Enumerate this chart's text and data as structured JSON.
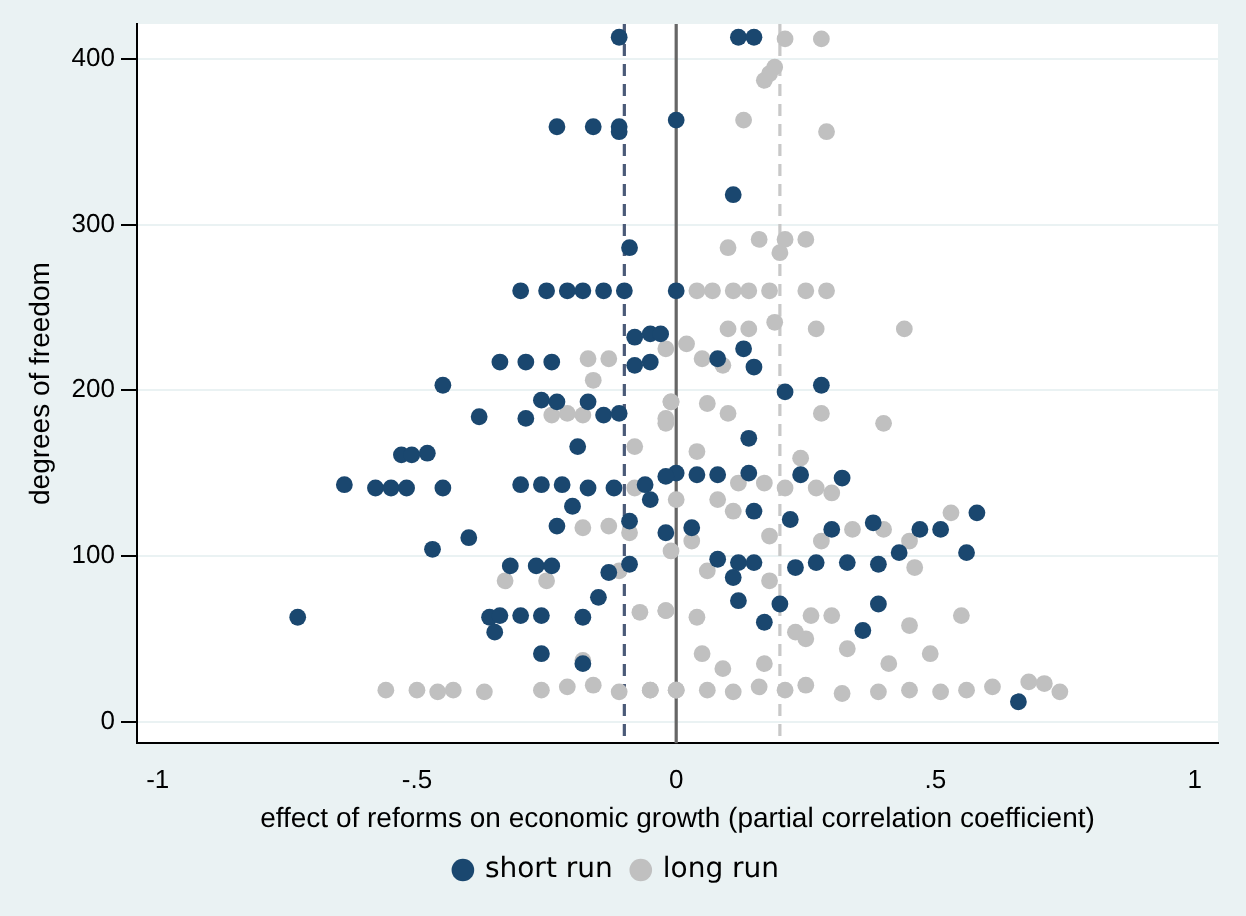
{
  "chart_data": {
    "type": "scatter",
    "xlabel": "effect of reforms on economic growth (partial correlation coefficient)",
    "ylabel": "degrees of freedom",
    "xlim": [
      -1.04,
      1.045
    ],
    "ylim": [
      -13,
      421
    ],
    "xticks": [
      -1,
      {
        "value": -0.5,
        "label": "-.5"
      },
      0,
      {
        "value": 0.5,
        "label": ".5"
      },
      1
    ],
    "yticks": [
      0,
      100,
      200,
      300,
      400
    ],
    "grid": "y",
    "legend": "bottom",
    "marker": "circle",
    "ref_lines": [
      {
        "axis": "x",
        "value": -0.1,
        "color": "#4a5a78",
        "line_style": "dashed"
      },
      {
        "axis": "x",
        "value": 0,
        "color": "#666666",
        "line_style": "solid"
      },
      {
        "axis": "x",
        "value": 0.2,
        "color": "#c8c8c8",
        "line_style": "dashed"
      }
    ],
    "series": [
      {
        "name": "short run",
        "color": "#1a476f",
        "x": [
          -0.11,
          -0.23,
          -0.16,
          -0.11,
          -0.11,
          0,
          -0.09,
          -0.3,
          -0.25,
          -0.21,
          -0.18,
          -0.14,
          -0.1,
          0,
          0.11,
          0.12,
          0.15,
          -0.08,
          -0.05,
          -0.03,
          -0.08,
          -0.05,
          -0.34,
          -0.29,
          -0.24,
          -0.26,
          -0.23,
          -0.17,
          -0.45,
          -0.38,
          -0.29,
          -0.14,
          -0.11,
          -0.19,
          -0.53,
          -0.51,
          -0.48,
          -0.64,
          -0.58,
          -0.55,
          -0.52,
          -0.45,
          -0.3,
          -0.26,
          -0.22,
          -0.17,
          -0.12,
          -0.06,
          -0.2,
          -0.05,
          -0.23,
          -0.09,
          -0.4,
          -0.47,
          -0.32,
          -0.27,
          -0.24,
          -0.13,
          -0.09,
          -0.15,
          -0.73,
          -0.36,
          -0.34,
          -0.3,
          -0.26,
          -0.35,
          -0.18,
          -0.26,
          -0.18,
          0,
          -0.02,
          0.08,
          0.13,
          0.15,
          0.21,
          0.28,
          0.14,
          0.04,
          0.08,
          0.14,
          0.24,
          0.32,
          0.15,
          0.22,
          0.3,
          0.38,
          0.43,
          0.47,
          0.51,
          0.58,
          0.56,
          -0.02,
          0.03,
          0.08,
          0.12,
          0.15,
          0.11,
          0.23,
          0.27,
          0.33,
          0.39,
          0.12,
          0.2,
          0.17,
          0.39,
          0.36,
          0.66
        ],
        "values": [
          413,
          359,
          359,
          359,
          356,
          363,
          286,
          260,
          260,
          260,
          260,
          260,
          260,
          260,
          318,
          413,
          413,
          232,
          234,
          234,
          215,
          217,
          217,
          217,
          217,
          194,
          193,
          193,
          203,
          184,
          183,
          185,
          186,
          166,
          161,
          161,
          162,
          143,
          141,
          141,
          141,
          141,
          143,
          143,
          143,
          141,
          141,
          143,
          130,
          134,
          118,
          121,
          111,
          104,
          94,
          94,
          94,
          90,
          95,
          75,
          63,
          63,
          64,
          64,
          64,
          54,
          63,
          41,
          35,
          150,
          148,
          219,
          225,
          214,
          199,
          203,
          171,
          149,
          149,
          150,
          149,
          147,
          127,
          122,
          116,
          120,
          102,
          116,
          116,
          126,
          102,
          114,
          117,
          98,
          96,
          96,
          87,
          93,
          96,
          96,
          95,
          73,
          71,
          60,
          71,
          55,
          12
        ]
      },
      {
        "name": "long run",
        "color": "#c0c0c0",
        "x": [
          0.21,
          0.28,
          0.18,
          0.19,
          0.17,
          0.13,
          0.29,
          0.1,
          0.16,
          0.21,
          0.25,
          0.2,
          0.04,
          0.07,
          0.11,
          0.14,
          0.18,
          0.25,
          0.29,
          0.1,
          0.14,
          0.19,
          0.27,
          0.44,
          -0.02,
          0.02,
          0.05,
          0.09,
          0.28,
          0.4,
          -0.01,
          0.06,
          0.1,
          -0.02,
          0.04,
          0.24,
          0.12,
          0.17,
          0.21,
          0.27,
          0.3,
          0,
          0.08,
          0.11,
          0.03,
          0.18,
          0.28,
          0.34,
          0.4,
          0.45,
          0.53,
          0.46,
          0.06,
          0.18,
          0.26,
          0.3,
          -0.02,
          0.04,
          0.45,
          0.55,
          0.23,
          0.25,
          0.33,
          0.49,
          0.41,
          0.05,
          0.09,
          0.17,
          -0.05,
          0,
          0.06,
          0.11,
          0.16,
          0.21,
          0.25,
          0.32,
          0.39,
          0.45,
          0.51,
          0.56,
          0.61,
          0.68,
          0.71,
          0.74,
          -0.17,
          -0.13,
          -0.16,
          -0.24,
          -0.21,
          -0.18,
          -0.01,
          -0.02,
          -0.08,
          -0.08,
          -0.18,
          -0.13,
          -0.09,
          -0.01,
          -0.33,
          -0.25,
          -0.11,
          -0.07,
          -0.02,
          -0.18,
          -0.56,
          -0.5,
          -0.46,
          -0.43,
          -0.37,
          -0.26,
          -0.21,
          -0.16,
          -0.11,
          -0.05,
          0
        ],
        "values": [
          412,
          412,
          391,
          395,
          387,
          363,
          356,
          286,
          291,
          291,
          291,
          283,
          260,
          260,
          260,
          260,
          260,
          260,
          260,
          237,
          237,
          241,
          237,
          237,
          225,
          228,
          219,
          215,
          186,
          180,
          193,
          192,
          186,
          183,
          163,
          159,
          144,
          144,
          141,
          141,
          138,
          134,
          134,
          127,
          109,
          112,
          109,
          116,
          116,
          109,
          126,
          93,
          91,
          85,
          64,
          64,
          67,
          63,
          58,
          64,
          54,
          50,
          44,
          41,
          35,
          41,
          32,
          35,
          19,
          19,
          19,
          18,
          21,
          19,
          22,
          17,
          18,
          19,
          18,
          19,
          21,
          24,
          23,
          18,
          219,
          219,
          206,
          185,
          186,
          185,
          193,
          180,
          166,
          141,
          117,
          118,
          114,
          103,
          85,
          85,
          91,
          66,
          67,
          37,
          19,
          19,
          18,
          19,
          18,
          19,
          21,
          22,
          18,
          19,
          19
        ]
      }
    ]
  }
}
